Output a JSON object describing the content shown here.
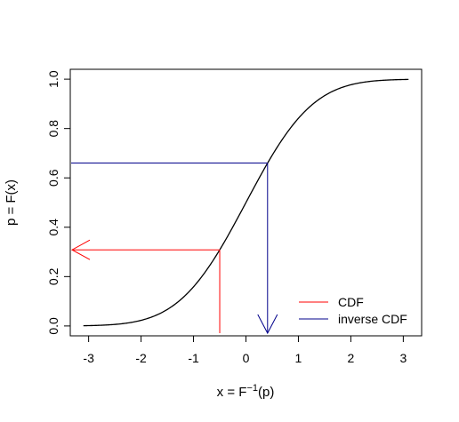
{
  "chart_data": {
    "type": "line",
    "title": "",
    "xlabel_parts": {
      "main": "x = F",
      "sup": "−1",
      "tail": "(p)"
    },
    "ylabel": "p = F(x)",
    "xlim": [
      -3.35,
      3.35
    ],
    "ylim": [
      -0.04,
      1.04
    ],
    "xticks": [
      -3,
      -2,
      -1,
      0,
      1,
      2,
      3
    ],
    "xtick_labels": [
      "-3",
      "-2",
      "-1",
      "0",
      "1",
      "2",
      "3"
    ],
    "yticks": [
      0.0,
      0.2,
      0.4,
      0.6,
      0.8,
      1.0
    ],
    "ytick_labels": [
      "0.0",
      "0.2",
      "0.4",
      "0.6",
      "0.8",
      "1.0"
    ],
    "grid": false,
    "series": [
      {
        "name": "",
        "kind": "normal-cdf",
        "color": "#000000",
        "x_range": [
          -3.1,
          3.1
        ]
      }
    ],
    "cdf_path": {
      "color": "#ff0000",
      "x": -0.5,
      "p": 0.3085,
      "direction": "vertical line up from x-axis, then horizontal arrow to the left axis"
    },
    "inverse_cdf_path": {
      "color": "#00008b",
      "p": 0.66,
      "x": 0.412,
      "direction": "horizontal line from left axis to curve, then vertical arrow down to x-axis"
    },
    "legend": {
      "placement": "bottom-right",
      "entries": [
        {
          "label": "CDF",
          "color": "#ff0000"
        },
        {
          "label": "inverse CDF",
          "color": "#00008b"
        }
      ]
    }
  }
}
